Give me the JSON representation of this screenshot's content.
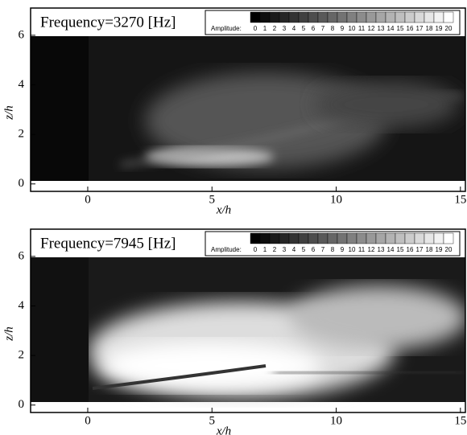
{
  "chart_data": [
    {
      "type": "heatmap",
      "title": "Frequency=3270 [Hz]",
      "xlabel": "x/h",
      "ylabel": "z/h",
      "xlim": [
        -2.3,
        15.2
      ],
      "ylim": [
        -0.3,
        7.1
      ],
      "xticks": [
        0,
        5,
        10,
        15
      ],
      "yticks": [
        0,
        2,
        4,
        6
      ],
      "colorbar": {
        "label": "Amplitude:",
        "ticks": [
          0,
          1,
          2,
          3,
          4,
          5,
          6,
          7,
          8,
          9,
          10,
          11,
          12,
          13,
          14,
          15,
          16,
          17,
          18,
          19,
          20
        ]
      }
    },
    {
      "type": "heatmap",
      "title": "Frequency=7945 [Hz]",
      "xlabel": "x/h",
      "ylabel": "z/h",
      "xlim": [
        -2.3,
        15.2
      ],
      "ylim": [
        -0.3,
        7.1
      ],
      "xticks": [
        0,
        5,
        10,
        15
      ],
      "yticks": [
        0,
        2,
        4,
        6
      ],
      "colorbar": {
        "label": "Amplitude:",
        "ticks": [
          0,
          1,
          2,
          3,
          4,
          5,
          6,
          7,
          8,
          9,
          10,
          11,
          12,
          13,
          14,
          15,
          16,
          17,
          18,
          19,
          20
        ]
      }
    }
  ]
}
